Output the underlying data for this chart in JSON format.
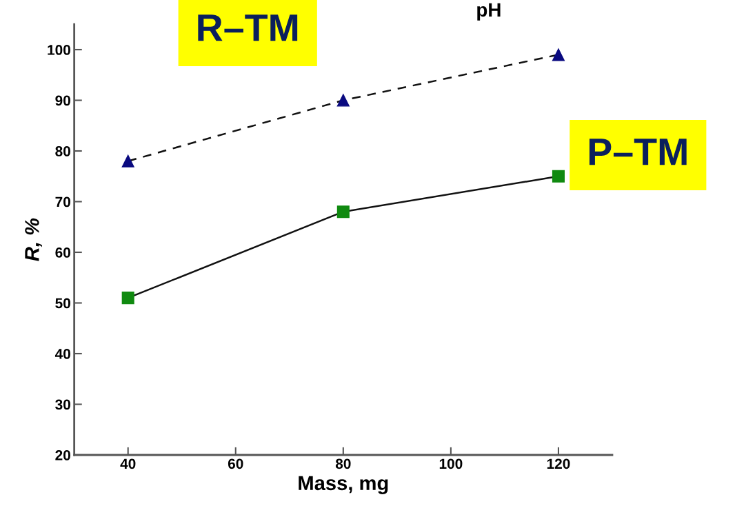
{
  "chart_data": {
    "type": "line",
    "title": "pH",
    "xlabel": "Mass, mg",
    "ylabel": "R, %",
    "x": [
      40,
      80,
      120
    ],
    "series": [
      {
        "name": "R–TM",
        "color": "#0a0a80",
        "values": [
          78,
          90,
          99
        ],
        "marker": "triangle",
        "line_style": "dashed"
      },
      {
        "name": "P–TM",
        "color": "#108a10",
        "values": [
          51,
          68,
          75
        ],
        "marker": "square",
        "line_style": "solid"
      }
    ],
    "xlim": [
      30,
      130
    ],
    "xticks": [
      40,
      60,
      80,
      100,
      120
    ],
    "ylim": [
      20,
      105
    ],
    "yticks": [
      20,
      30,
      40,
      50,
      60,
      70,
      80,
      90,
      100
    ],
    "grid": false,
    "legend": false
  }
}
